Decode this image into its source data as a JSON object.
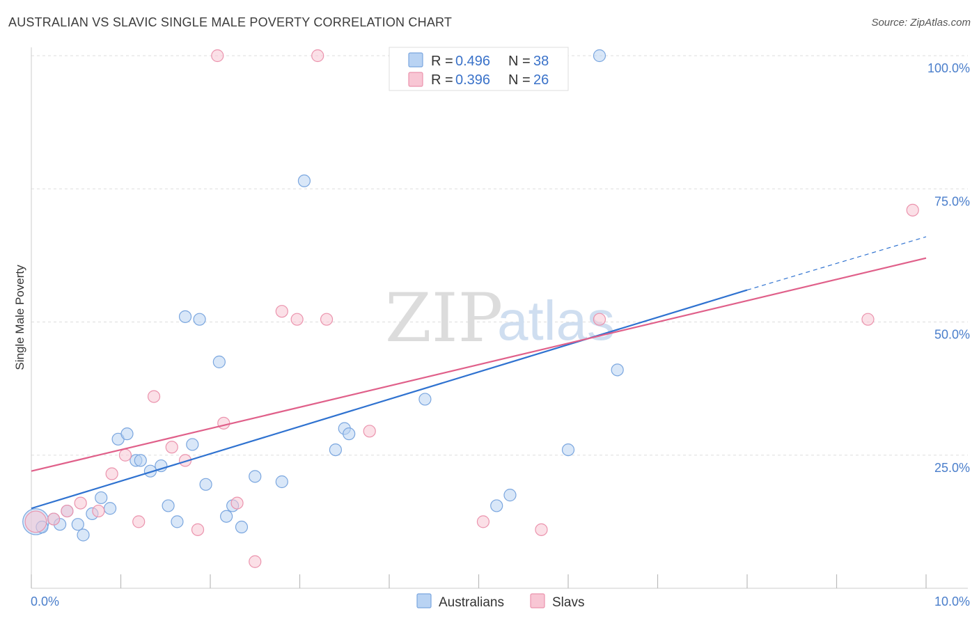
{
  "header": {
    "title": "AUSTRALIAN VS SLAVIC SINGLE MALE POVERTY CORRELATION CHART",
    "source": "Source: ZipAtlas.com"
  },
  "watermark": {
    "zip": "ZIP",
    "atlas": "atlas"
  },
  "colors": {
    "australians_fill": "#b9d3f3",
    "australians_stroke": "#7aa6df",
    "australians_line": "#2f72d0",
    "slavs_fill": "#f8c6d4",
    "slavs_stroke": "#eb93ad",
    "slavs_line": "#e0608a",
    "grid": "#dddddd",
    "tick_text": "#4a7ecb"
  },
  "legend_top": {
    "rows": [
      {
        "r_label": "R = ",
        "r_value": "0.496",
        "n_label": "N = ",
        "n_value": "38"
      },
      {
        "r_label": "R = ",
        "r_value": "0.396",
        "n_label": "N = ",
        "n_value": "26"
      }
    ]
  },
  "chart_data": {
    "type": "scatter",
    "title": "AUSTRALIAN VS SLAVIC SINGLE MALE POVERTY CORRELATION CHART",
    "xlabel": "",
    "ylabel": "Single Male Poverty",
    "xlim": [
      0,
      10
    ],
    "ylim": [
      0,
      100
    ],
    "x_tick_labels": [
      "0.0%",
      "10.0%"
    ],
    "y_ticks": [
      25,
      50,
      75,
      100
    ],
    "y_tick_labels": [
      "25.0%",
      "50.0%",
      "75.0%",
      "100.0%"
    ],
    "grid": true,
    "legend_position": "top-center",
    "series": [
      {
        "name": "Australians",
        "r": 0.496,
        "n": 38,
        "trend": {
          "x0": 0.0,
          "y0": 15.0,
          "x1": 8.0,
          "y1": 56.0,
          "dash_to_x": 10.0,
          "dash_to_y": 66.0
        },
        "points": [
          [
            0.05,
            12.5,
            22
          ],
          [
            0.12,
            11.5,
            10
          ],
          [
            0.25,
            13.0,
            10
          ],
          [
            0.32,
            12.0,
            10
          ],
          [
            0.4,
            14.5,
            10
          ],
          [
            0.52,
            12.0,
            10
          ],
          [
            0.58,
            10.0,
            10
          ],
          [
            0.68,
            14.0,
            10
          ],
          [
            0.78,
            17.0,
            10
          ],
          [
            0.88,
            15.0,
            10
          ],
          [
            0.97,
            28.0,
            10
          ],
          [
            1.07,
            29.0,
            10
          ],
          [
            1.17,
            24.0,
            10
          ],
          [
            1.22,
            24.0,
            10
          ],
          [
            1.33,
            22.0,
            10
          ],
          [
            1.45,
            23.0,
            10
          ],
          [
            1.53,
            15.5,
            10
          ],
          [
            1.63,
            12.5,
            10
          ],
          [
            1.72,
            51.0,
            10
          ],
          [
            1.8,
            27.0,
            10
          ],
          [
            1.88,
            50.5,
            10
          ],
          [
            1.95,
            19.5,
            10
          ],
          [
            2.1,
            42.5,
            10
          ],
          [
            2.18,
            13.5,
            10
          ],
          [
            2.25,
            15.5,
            10
          ],
          [
            2.35,
            11.5,
            10
          ],
          [
            2.5,
            21.0,
            10
          ],
          [
            2.8,
            20.0,
            10
          ],
          [
            3.05,
            76.5,
            10
          ],
          [
            3.4,
            26.0,
            10
          ],
          [
            3.5,
            30.0,
            10
          ],
          [
            3.55,
            29.0,
            10
          ],
          [
            4.4,
            35.5,
            10
          ],
          [
            5.2,
            15.5,
            10
          ],
          [
            5.35,
            17.5,
            10
          ],
          [
            6.0,
            26.0,
            10
          ],
          [
            6.35,
            100.0,
            10
          ],
          [
            6.55,
            41.0,
            10
          ]
        ]
      },
      {
        "name": "Slavs",
        "r": 0.396,
        "n": 26,
        "trend": {
          "x0": 0.0,
          "y0": 22.0,
          "x1": 10.0,
          "y1": 62.0
        },
        "points": [
          [
            0.05,
            12.5,
            18
          ],
          [
            0.25,
            13.0,
            10
          ],
          [
            0.4,
            14.5,
            10
          ],
          [
            0.55,
            16.0,
            10
          ],
          [
            0.75,
            14.5,
            10
          ],
          [
            0.9,
            21.5,
            10
          ],
          [
            1.05,
            25.0,
            10
          ],
          [
            1.2,
            12.5,
            10
          ],
          [
            1.37,
            36.0,
            10
          ],
          [
            1.57,
            26.5,
            10
          ],
          [
            1.72,
            24.0,
            10
          ],
          [
            1.86,
            11.0,
            10
          ],
          [
            2.08,
            100.0,
            10
          ],
          [
            2.15,
            31.0,
            10
          ],
          [
            2.3,
            16.0,
            10
          ],
          [
            2.5,
            5.0,
            10
          ],
          [
            2.8,
            52.0,
            10
          ],
          [
            2.97,
            50.5,
            10
          ],
          [
            3.2,
            100.0,
            10
          ],
          [
            3.3,
            50.5,
            10
          ],
          [
            3.78,
            29.5,
            10
          ],
          [
            5.05,
            12.5,
            10
          ],
          [
            5.7,
            11.0,
            10
          ],
          [
            6.35,
            50.5,
            10
          ],
          [
            9.35,
            50.5,
            10
          ],
          [
            9.85,
            71.0,
            10
          ]
        ]
      }
    ]
  },
  "legend_bottom": {
    "items": [
      "Australians",
      "Slavs"
    ]
  }
}
